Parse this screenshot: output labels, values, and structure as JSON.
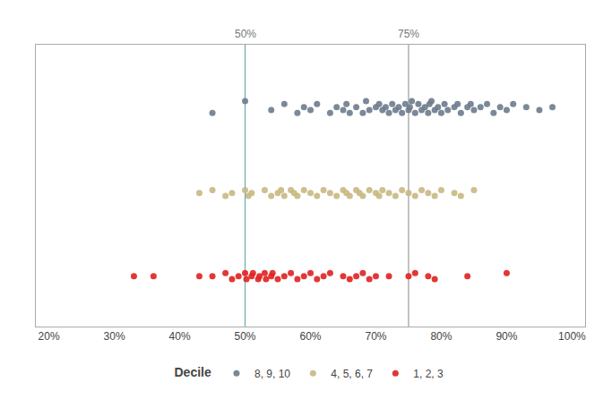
{
  "chart_data": {
    "type": "scatter",
    "marker": "circle",
    "grid": false,
    "legend": "bottom",
    "legend_title": "Decile",
    "tick_labels": "x",
    "xlim": [
      0.18,
      1.02
    ],
    "ylim": [
      0.05,
      1.0
    ],
    "xticks": [
      {
        "value": 0.2,
        "label": "20%"
      },
      {
        "value": 0.3,
        "label": "30%"
      },
      {
        "value": 0.4,
        "label": "40%"
      },
      {
        "value": 0.5,
        "label": "50%"
      },
      {
        "value": 0.6,
        "label": "60%"
      },
      {
        "value": 0.7,
        "label": "70%"
      },
      {
        "value": 0.8,
        "label": "80%"
      },
      {
        "value": 0.9,
        "label": "90%"
      },
      {
        "value": 1.0,
        "label": "100%"
      }
    ],
    "annotations": [
      {
        "type": "vline",
        "x": 0.5,
        "label": "50%",
        "color": "#5ba3a0"
      },
      {
        "type": "vline",
        "x": 0.75,
        "label": "75%",
        "color": "#888888"
      }
    ],
    "series": [
      {
        "name": "8, 9, 10",
        "color": "#6d7b8d",
        "x": [
          0.45,
          0.5,
          0.54,
          0.56,
          0.58,
          0.59,
          0.6,
          0.61,
          0.63,
          0.64,
          0.65,
          0.655,
          0.66,
          0.67,
          0.68,
          0.685,
          0.69,
          0.7,
          0.705,
          0.71,
          0.715,
          0.72,
          0.725,
          0.73,
          0.735,
          0.74,
          0.745,
          0.75,
          0.752,
          0.755,
          0.76,
          0.765,
          0.77,
          0.775,
          0.78,
          0.782,
          0.785,
          0.79,
          0.795,
          0.8,
          0.805,
          0.81,
          0.82,
          0.825,
          0.83,
          0.84,
          0.845,
          0.85,
          0.86,
          0.87,
          0.88,
          0.89,
          0.9,
          0.91,
          0.93,
          0.95,
          0.97
        ],
        "values": [
          0.77,
          0.81,
          0.78,
          0.8,
          0.77,
          0.79,
          0.78,
          0.8,
          0.77,
          0.79,
          0.78,
          0.8,
          0.77,
          0.79,
          0.77,
          0.81,
          0.78,
          0.79,
          0.8,
          0.78,
          0.79,
          0.77,
          0.8,
          0.78,
          0.79,
          0.77,
          0.8,
          0.78,
          0.79,
          0.81,
          0.77,
          0.8,
          0.78,
          0.79,
          0.77,
          0.8,
          0.81,
          0.78,
          0.79,
          0.77,
          0.8,
          0.78,
          0.79,
          0.8,
          0.77,
          0.79,
          0.8,
          0.78,
          0.79,
          0.8,
          0.77,
          0.79,
          0.78,
          0.8,
          0.79,
          0.78,
          0.79
        ]
      },
      {
        "name": "4, 5, 6, 7",
        "color": "#c8b882",
        "x": [
          0.43,
          0.45,
          0.47,
          0.48,
          0.5,
          0.505,
          0.51,
          0.53,
          0.54,
          0.55,
          0.555,
          0.56,
          0.57,
          0.575,
          0.58,
          0.59,
          0.6,
          0.61,
          0.62,
          0.63,
          0.64,
          0.65,
          0.655,
          0.66,
          0.67,
          0.675,
          0.68,
          0.69,
          0.7,
          0.705,
          0.71,
          0.72,
          0.73,
          0.74,
          0.75,
          0.76,
          0.77,
          0.78,
          0.79,
          0.8,
          0.82,
          0.83,
          0.85
        ],
        "values": [
          0.5,
          0.51,
          0.49,
          0.5,
          0.51,
          0.49,
          0.5,
          0.51,
          0.49,
          0.5,
          0.51,
          0.49,
          0.51,
          0.5,
          0.49,
          0.51,
          0.5,
          0.49,
          0.51,
          0.5,
          0.49,
          0.51,
          0.5,
          0.49,
          0.51,
          0.5,
          0.49,
          0.51,
          0.5,
          0.49,
          0.51,
          0.5,
          0.49,
          0.51,
          0.5,
          0.49,
          0.51,
          0.5,
          0.49,
          0.51,
          0.5,
          0.49,
          0.51
        ]
      },
      {
        "name": "1, 2, 3",
        "color": "#e02020",
        "x": [
          0.33,
          0.36,
          0.43,
          0.45,
          0.47,
          0.48,
          0.49,
          0.5,
          0.502,
          0.51,
          0.512,
          0.52,
          0.522,
          0.53,
          0.532,
          0.54,
          0.542,
          0.55,
          0.56,
          0.57,
          0.58,
          0.59,
          0.6,
          0.61,
          0.62,
          0.63,
          0.65,
          0.66,
          0.67,
          0.68,
          0.69,
          0.7,
          0.72,
          0.75,
          0.76,
          0.78,
          0.79,
          0.84,
          0.9
        ],
        "values": [
          0.22,
          0.22,
          0.22,
          0.22,
          0.23,
          0.21,
          0.22,
          0.23,
          0.21,
          0.22,
          0.23,
          0.21,
          0.22,
          0.23,
          0.21,
          0.22,
          0.23,
          0.21,
          0.22,
          0.23,
          0.21,
          0.22,
          0.23,
          0.21,
          0.22,
          0.23,
          0.22,
          0.21,
          0.22,
          0.23,
          0.21,
          0.22,
          0.22,
          0.22,
          0.23,
          0.22,
          0.21,
          0.22,
          0.23
        ]
      }
    ]
  }
}
